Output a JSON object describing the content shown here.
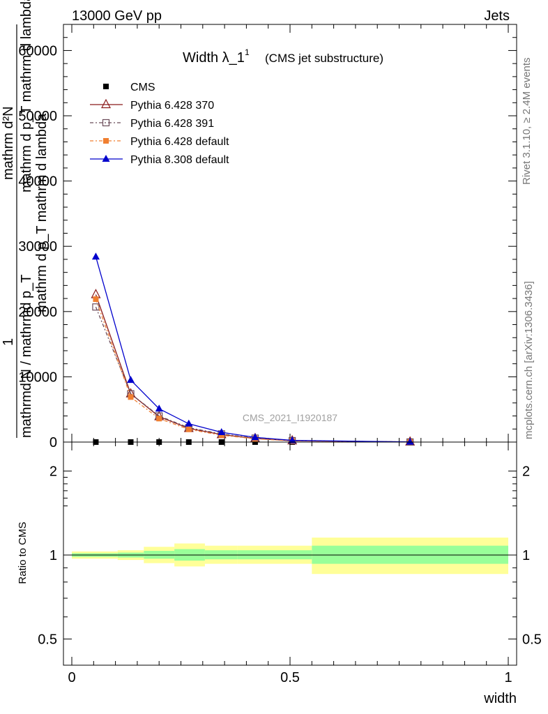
{
  "header": {
    "left": "13000 GeV pp",
    "right": "Jets"
  },
  "side_labels": {
    "rivet": "Rivet 3.1.10, ≥ 2.4M events",
    "mcplots": "mcplots.cern.ch [arXiv:1306.3436]"
  },
  "chart_data": [
    {
      "type": "line",
      "title": "Width λ_1¹",
      "title_main": "Width λ_1",
      "title_sup": "1",
      "subtitle": "(CMS jet substructure)",
      "watermark": "CMS_2021_I1920187",
      "ylabel": "1 / mathrmd N / mathrmd p_T mathrm d^2N / mathrm d p_T mathrm d lambda",
      "ylabel_parts": {
        "one": "1",
        "num": "mathrm d²N",
        "num_cont": "mathrm d p_T mathrm d lambda",
        "den": "mathrmd N / mathrmd p_T",
        "den_cont": "mathrm d p_T mathrm d lambda"
      },
      "xlim": [
        0,
        1
      ],
      "ylim": [
        0,
        64000
      ],
      "yticks": [
        0,
        10000,
        20000,
        30000,
        40000,
        50000,
        60000
      ],
      "ytick_labels": [
        "0",
        "10000",
        "20000",
        "30000",
        "40000",
        "50000",
        "60000"
      ],
      "legend_position": "top-left",
      "legend": [
        "CMS",
        "Pythia 6.428 370",
        "Pythia 6.428 391",
        "Pythia 6.428 default",
        "Pythia 8.308 default"
      ],
      "x": [
        0.055,
        0.135,
        0.2,
        0.268,
        0.343,
        0.42,
        0.505,
        0.775
      ],
      "series": [
        {
          "name": "CMS",
          "color": "#000000",
          "marker": "square",
          "values": [
            0,
            0,
            0,
            0,
            0,
            0,
            0,
            0
          ]
        },
        {
          "name": "Pythia 6.428 370",
          "color": "#8b1a1a",
          "marker": "open-triangle",
          "dash": "",
          "values": [
            22600,
            7400,
            3900,
            2100,
            1150,
            550,
            200,
            20
          ]
        },
        {
          "name": "Pythia 6.428 391",
          "color": "#6b4c5a",
          "marker": "open-square",
          "dash": "5,3,2,3",
          "values": [
            20700,
            7400,
            4000,
            2200,
            1250,
            600,
            220,
            20
          ]
        },
        {
          "name": "Pythia 6.428 default",
          "color": "#f07f30",
          "marker": "square",
          "dash": "5,3,2,3",
          "values": [
            21900,
            6900,
            3600,
            1950,
            1050,
            500,
            180,
            15
          ]
        },
        {
          "name": "Pythia 8.308 default",
          "color": "#0000cc",
          "marker": "triangle",
          "dash": "",
          "values": [
            28400,
            9500,
            5100,
            2800,
            1500,
            720,
            260,
            25
          ]
        }
      ]
    },
    {
      "type": "area",
      "ylabel": "Ratio to CMS",
      "xlabel": "width",
      "xlim": [
        0,
        1
      ],
      "ylim": [
        0.4,
        2.3
      ],
      "xticks": [
        0,
        0.5,
        1
      ],
      "xtick_labels": [
        "0",
        "0.5",
        "1"
      ],
      "yticks": [
        0.5,
        1,
        2
      ],
      "ytick_labels": [
        "0.5",
        "1",
        "2"
      ],
      "bins": [
        {
          "lo": 0.0,
          "hi": 0.105,
          "inner": [
            0.985,
            1.015
          ],
          "outer": [
            0.97,
            1.03
          ]
        },
        {
          "lo": 0.105,
          "hi": 0.165,
          "inner": [
            0.98,
            1.02
          ],
          "outer": [
            0.96,
            1.04
          ]
        },
        {
          "lo": 0.165,
          "hi": 0.235,
          "inner": [
            0.97,
            1.035
          ],
          "outer": [
            0.935,
            1.07
          ]
        },
        {
          "lo": 0.235,
          "hi": 0.305,
          "inner": [
            0.955,
            1.05
          ],
          "outer": [
            0.91,
            1.1
          ]
        },
        {
          "lo": 0.305,
          "hi": 0.38,
          "inner": [
            0.965,
            1.04
          ],
          "outer": [
            0.93,
            1.08
          ]
        },
        {
          "lo": 0.38,
          "hi": 0.55,
          "inner": [
            0.965,
            1.04
          ],
          "outer": [
            0.93,
            1.08
          ]
        },
        {
          "lo": 0.55,
          "hi": 1.0,
          "inner": [
            0.93,
            1.08
          ],
          "outer": [
            0.855,
            1.155
          ]
        }
      ],
      "reference": 1,
      "inner_color": "#99ff99",
      "outer_color": "#ffff99"
    }
  ]
}
